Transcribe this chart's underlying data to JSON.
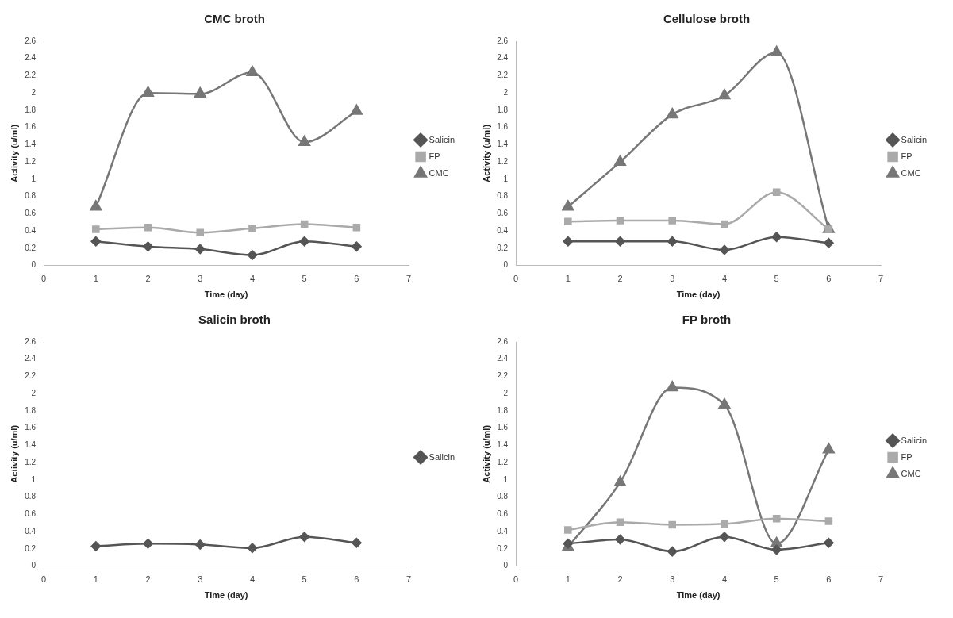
{
  "chart_data": [
    {
      "type": "line",
      "title": "CMC broth",
      "xlabel": "Time (day)",
      "ylabel": "Activity (u/ml)",
      "x": [
        1,
        2,
        3,
        4,
        5,
        6
      ],
      "xlim": [
        0,
        7
      ],
      "xticks": [
        0,
        1,
        2,
        3,
        4,
        5,
        6,
        7
      ],
      "ylim": [
        0,
        2.6
      ],
      "yticks": [
        0,
        0.2,
        0.4,
        0.6,
        0.8,
        1,
        1.2,
        1.4,
        1.6,
        1.8,
        2,
        2.2,
        2.4,
        2.6
      ],
      "grid": false,
      "legend": "right",
      "series": [
        {
          "name": "Salicin",
          "color": "#555555",
          "marker": "diamond",
          "values": [
            0.28,
            0.22,
            0.19,
            0.12,
            0.28,
            0.22
          ]
        },
        {
          "name": "FP",
          "color": "#aaaaaa",
          "marker": "square",
          "values": [
            0.42,
            0.44,
            0.38,
            0.43,
            0.48,
            0.44
          ]
        },
        {
          "name": "CMC",
          "color": "#777777",
          "marker": "triangle",
          "values": [
            0.68,
            2.0,
            1.99,
            2.24,
            1.43,
            1.79
          ]
        }
      ]
    },
    {
      "type": "line",
      "title": "Cellulose broth",
      "xlabel": "Time (day)",
      "ylabel": "Activity (u/ml)",
      "x": [
        1,
        2,
        3,
        4,
        5,
        6
      ],
      "xlim": [
        0,
        7
      ],
      "xticks": [
        0,
        1,
        2,
        3,
        4,
        5,
        6,
        7
      ],
      "ylim": [
        0,
        2.6
      ],
      "yticks": [
        0,
        0.2,
        0.4,
        0.6,
        0.8,
        1,
        1.2,
        1.4,
        1.6,
        1.8,
        2,
        2.2,
        2.4,
        2.6
      ],
      "grid": false,
      "legend": "right",
      "series": [
        {
          "name": "Salicin",
          "color": "#555555",
          "marker": "diamond",
          "values": [
            0.28,
            0.28,
            0.28,
            0.18,
            0.33,
            0.26
          ]
        },
        {
          "name": "FP",
          "color": "#aaaaaa",
          "marker": "square",
          "values": [
            0.51,
            0.52,
            0.52,
            0.48,
            0.85,
            0.42
          ]
        },
        {
          "name": "CMC",
          "color": "#777777",
          "marker": "triangle",
          "values": [
            0.68,
            1.2,
            1.75,
            1.97,
            2.47,
            0.42
          ]
        }
      ]
    },
    {
      "type": "line",
      "title": "Salicin broth",
      "xlabel": "Time (day)",
      "ylabel": "Activity (u/ml)",
      "x": [
        1,
        2,
        3,
        4,
        5,
        6
      ],
      "xlim": [
        0,
        7
      ],
      "xticks": [
        0,
        1,
        2,
        3,
        4,
        5,
        6,
        7
      ],
      "ylim": [
        0,
        2.6
      ],
      "yticks": [
        0,
        0.2,
        0.4,
        0.6,
        0.8,
        1,
        1.2,
        1.4,
        1.6,
        1.8,
        2,
        2.2,
        2.4,
        2.6
      ],
      "grid": false,
      "legend": "right",
      "series": [
        {
          "name": "Salicin",
          "color": "#555555",
          "marker": "diamond",
          "values": [
            0.23,
            0.26,
            0.25,
            0.21,
            0.34,
            0.27
          ]
        }
      ]
    },
    {
      "type": "line",
      "title": "FP broth",
      "xlabel": "Time (day)",
      "ylabel": "Activity (u/ml)",
      "x": [
        1,
        2,
        3,
        4,
        5,
        6
      ],
      "xlim": [
        0,
        7
      ],
      "xticks": [
        0,
        1,
        2,
        3,
        4,
        5,
        6,
        7
      ],
      "ylim": [
        0,
        2.6
      ],
      "yticks": [
        0,
        0.2,
        0.4,
        0.6,
        0.8,
        1,
        1.2,
        1.4,
        1.6,
        1.8,
        2,
        2.2,
        2.4,
        2.6
      ],
      "grid": false,
      "legend": "right",
      "series": [
        {
          "name": "Salicin",
          "color": "#555555",
          "marker": "diamond",
          "values": [
            0.26,
            0.31,
            0.17,
            0.34,
            0.19,
            0.27
          ]
        },
        {
          "name": "FP",
          "color": "#aaaaaa",
          "marker": "square",
          "values": [
            0.42,
            0.51,
            0.48,
            0.49,
            0.55,
            0.52
          ]
        },
        {
          "name": "CMC",
          "color": "#777777",
          "marker": "triangle",
          "values": [
            0.22,
            0.97,
            2.07,
            1.87,
            0.26,
            1.35
          ]
        }
      ]
    }
  ]
}
